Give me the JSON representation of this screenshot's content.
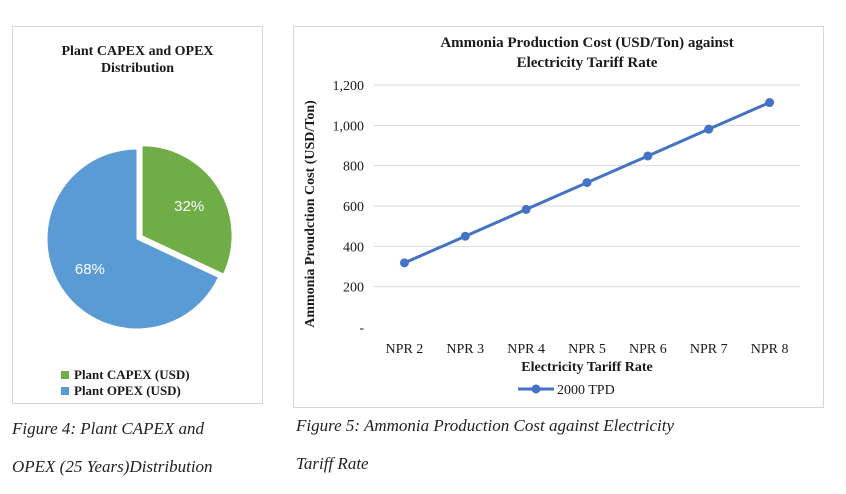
{
  "chart_data": [
    {
      "type": "pie",
      "title": "Plant CAPEX and OPEX Distribution",
      "title_lines": [
        "Plant CAPEX and OPEX",
        "Distribution"
      ],
      "slices": [
        {
          "name": "Plant CAPEX (USD)",
          "value": 32,
          "label": "32%",
          "color": "#70ad47"
        },
        {
          "name": "Plant OPEX (USD)",
          "value": 68,
          "label": "68%",
          "color": "#5b9bd5"
        }
      ],
      "legend_position": "bottom"
    },
    {
      "type": "line",
      "title": "Ammonia Production Cost (USD/Ton) against Electricity Tariff Rate",
      "title_lines": [
        "Ammonia Production Cost (USD/Ton) against",
        "Electricity Tariff Rate"
      ],
      "xlabel": "Electricity Tariff Rate",
      "ylabel": "Ammonia Proudction Cost (USD/Ton)",
      "categories": [
        "NPR 2",
        "NPR 3",
        "NPR 4",
        "NPR 5",
        "NPR 6",
        "NPR 7",
        "NPR 8"
      ],
      "series": [
        {
          "name": "2000 TPD",
          "values": [
            318,
            450,
            583,
            716,
            848,
            981,
            1113
          ],
          "color": "#4472c4"
        }
      ],
      "ylim": [
        0,
        1200
      ],
      "yticks": [
        0,
        200,
        400,
        600,
        800,
        1000,
        1200
      ],
      "ytick_labels": [
        "-",
        "200",
        "400",
        "600",
        "800",
        "1,000",
        "1,200"
      ],
      "grid": true,
      "legend_position": "bottom"
    }
  ],
  "captions": {
    "figure4": [
      "Figure 4: Plant CAPEX and",
      "OPEX (25 Years)Distribution"
    ],
    "figure5": [
      "Figure 5: Ammonia Production Cost against Electricity",
      "Tariff Rate"
    ]
  }
}
